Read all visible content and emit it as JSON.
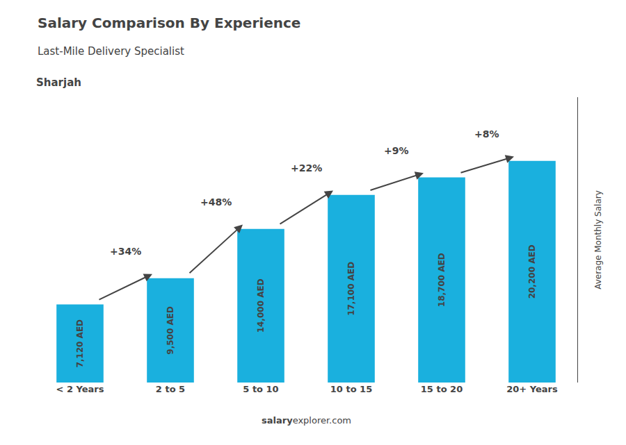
{
  "chart_data": {
    "type": "bar",
    "title": "Salary Comparison By Experience",
    "subtitle": "Last-Mile Delivery Specialist",
    "ylabel": "Average Monthly Salary",
    "categories": [
      "< 2 Years",
      "2 to 5",
      "5 to 10",
      "10 to 15",
      "15 to 20",
      "20+ Years"
    ],
    "values": [
      7120,
      9500,
      14000,
      17100,
      18700,
      20200
    ],
    "value_labels": [
      "7,120 AED",
      "9,500 AED",
      "14,000 AED",
      "17,100 AED",
      "18,700 AED",
      "20,200 AED"
    ],
    "data_labels": true,
    "color": "#1ab0de",
    "ylim": [
      0,
      26000
    ],
    "tick_labels": "x",
    "grid": false,
    "annotations": [
      {
        "text": "Sharjah"
      },
      {
        "text": "salary"
      },
      {
        "text": "explorer.com"
      },
      {
        "text": "+34%",
        "from": "< 2 Years",
        "to": "2 to 5"
      },
      {
        "text": "+48%",
        "from": "2 to 5",
        "to": "5 to 10"
      },
      {
        "text": "+22%",
        "from": "5 to 10",
        "to": "10 to 15"
      },
      {
        "text": "+9%",
        "from": "10 to 15",
        "to": "15 to 20"
      },
      {
        "text": "+8%",
        "from": "15 to 20",
        "to": "20+ Years"
      }
    ]
  }
}
